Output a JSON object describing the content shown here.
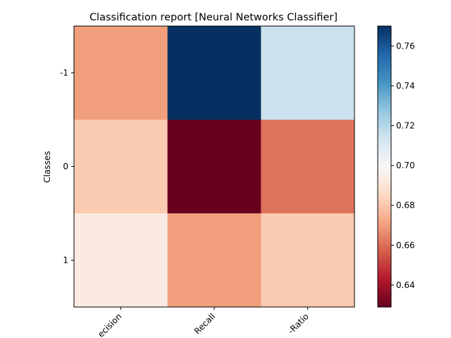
{
  "chart_data": {
    "type": "heatmap",
    "title": "Classification report  [Neural Networks Classifier]",
    "xlabel": "",
    "ylabel": "Classes",
    "x_categories": [
      "Precision",
      "Recall",
      "F-Ratio"
    ],
    "x_tick_labels_visible": [
      "ecision",
      "Recall",
      "-Ratio"
    ],
    "y_categories": [
      "-1",
      "0",
      "1"
    ],
    "values": [
      [
        0.67,
        0.77,
        0.715
      ],
      [
        0.681,
        0.629,
        0.661
      ],
      [
        0.693,
        0.67,
        0.681
      ]
    ],
    "colormap": "RdBu",
    "colorbar": {
      "range": [
        0.629,
        0.77
      ],
      "ticks": [
        0.64,
        0.66,
        0.68,
        0.7,
        0.72,
        0.74,
        0.76
      ],
      "tick_labels": [
        "0.64",
        "0.66",
        "0.68",
        "0.70",
        "0.72",
        "0.74",
        "0.76"
      ]
    },
    "grid": false,
    "x_tick_rotation": "45 degrees"
  }
}
